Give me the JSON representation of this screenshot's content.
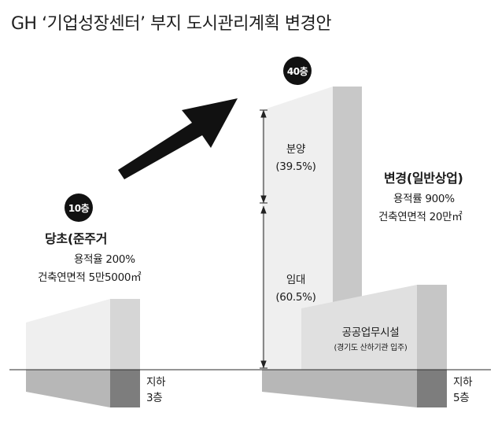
{
  "title": "GH ‘기업성장센터’ 부지 도시관리계획 변경안",
  "current": {
    "floors_badge": "10층",
    "heading": "당초(준주거",
    "far": "용적율 200%",
    "floor_area": "건축연면적 5만5000㎡",
    "basement_line1": "지하",
    "basement_line2": "3층"
  },
  "proposed": {
    "floors_badge": "40층",
    "heading": "변경(일반상업)",
    "far": "용적률 900%",
    "floor_area": "건축연면적 20만㎡",
    "sale_label": "분양",
    "sale_pct": "(39.5%)",
    "lease_label": "임대",
    "lease_pct": "(60.5%)",
    "podium_label": "공공업무시설",
    "podium_sub": "(경기도 산하기관 입주)",
    "basement_line1": "지하",
    "basement_line2": "5층"
  },
  "colors": {
    "tower_front": "#efefef",
    "tower_side": "#c8c8c8",
    "podium_front": "#e0e0e0",
    "podium_side": "#c6c6c6",
    "basement_front": "#b7b7b7",
    "basement_side": "#7d7d7d",
    "arrow": "#111111",
    "badge": "#111111"
  }
}
